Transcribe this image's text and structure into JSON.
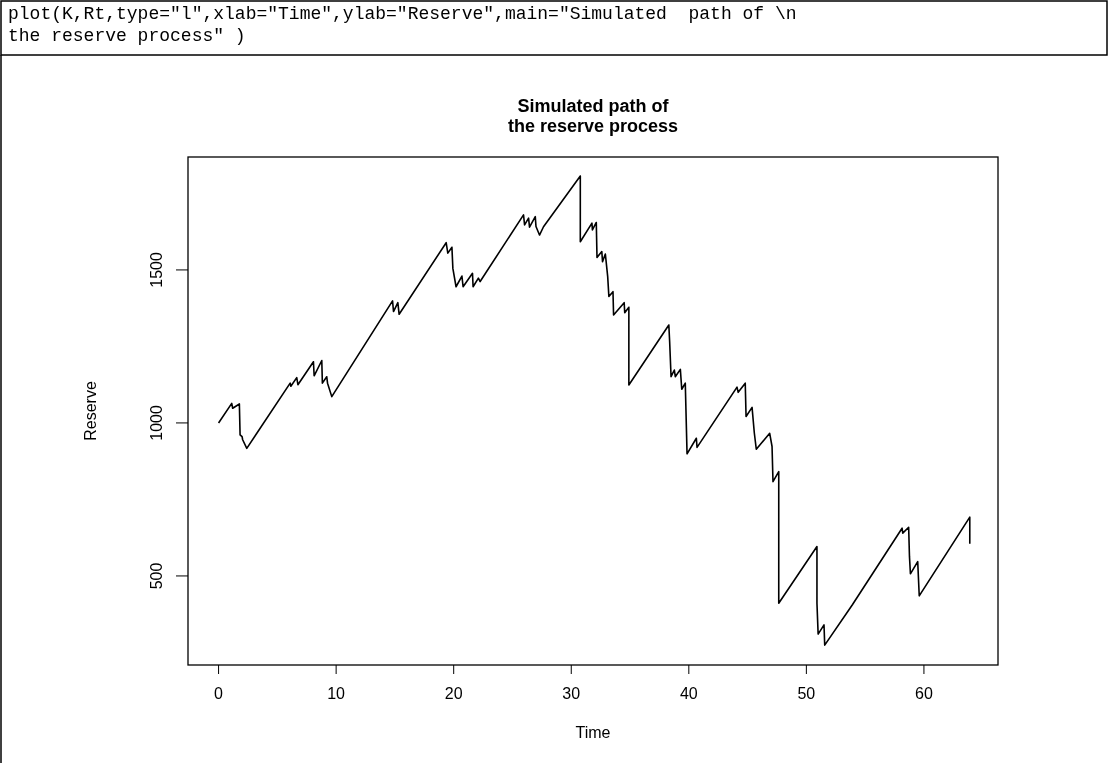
{
  "chart_data": {
    "type": "line",
    "title": "Simulated path of\nthe reserve process",
    "xlabel": "Time",
    "ylabel": "Reserve",
    "annotations": [
      "plot(K,Rt,type=\"l\",xlab=\"Time\",ylab=\"Reserve\",main=\"Simulated  path of \\n the reserve process\" )"
    ],
    "series": [
      {
        "color": "#000000",
        "x": [
          0,
          1.12,
          1.2,
          1.77,
          1.83,
          2.0,
          2.05,
          2.4,
          6.09,
          6.15,
          6.65,
          6.75,
          8.07,
          8.13,
          8.78,
          8.83,
          9.2,
          9.27,
          9.63,
          14.8,
          14.88,
          15.25,
          15.36,
          19.36,
          19.5,
          19.85,
          19.93,
          20.2,
          20.7,
          20.8,
          21.6,
          21.65,
          22.1,
          22.25,
          25.94,
          26.03,
          26.37,
          26.45,
          26.94,
          27.0,
          27.3,
          27.64,
          30.77,
          30.77,
          31.76,
          31.8,
          32.13,
          32.19,
          32.6,
          32.66,
          32.9,
          33.1,
          33.2,
          33.55,
          33.6,
          34.5,
          34.55,
          34.9,
          34.9,
          38.3,
          38.37,
          38.49,
          38.77,
          38.85,
          39.28,
          39.4,
          39.7,
          39.85,
          40.64,
          40.7,
          44.1,
          44.2,
          44.8,
          44.87,
          45.38,
          45.57,
          45.74,
          46.88,
          47.08,
          47.16,
          47.65,
          47.65,
          50.9,
          50.9,
          51.0,
          51.5,
          51.56,
          53.9,
          58.14,
          58.2,
          58.7,
          58.77,
          58.85,
          59.47,
          59.6,
          63.9,
          63.9
        ],
        "values": [
          1000,
          1064,
          1048,
          1062,
          961,
          955,
          945,
          917,
          1130,
          1120,
          1148,
          1125,
          1200,
          1154,
          1204,
          1130,
          1151,
          1130,
          1086,
          1399,
          1364,
          1393,
          1355,
          1589,
          1555,
          1574,
          1505,
          1445,
          1480,
          1445,
          1489,
          1445,
          1473,
          1462,
          1680,
          1647,
          1669,
          1640,
          1674,
          1642,
          1614,
          1641,
          1807,
          1592,
          1653,
          1631,
          1655,
          1541,
          1560,
          1527,
          1552,
          1478,
          1413,
          1429,
          1353,
          1393,
          1360,
          1378,
          1124,
          1320,
          1266,
          1151,
          1173,
          1151,
          1175,
          1110,
          1130,
          899,
          950,
          920,
          1117,
          1100,
          1130,
          1021,
          1051,
          968,
          914,
          966,
          923,
          808,
          841,
          411,
          596,
          411,
          310,
          340,
          274,
          405,
          656,
          640,
          659,
          563,
          507,
          547,
          435,
          692,
          605
        ]
      }
    ],
    "xlim": [
      -2.6,
      66.3
    ],
    "ylim": [
      209,
      1869
    ],
    "xticks": [
      0,
      10,
      20,
      30,
      40,
      50,
      60
    ],
    "yticks": [
      500,
      1000,
      1500
    ],
    "grid": false,
    "marker": "none",
    "line_style": "solid"
  }
}
